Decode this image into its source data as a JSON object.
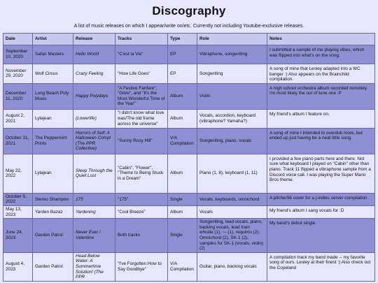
{
  "title": "Discography",
  "intro": "A list of music releases on which I appear/write on/etc. Currently not including Youtube-exclusive releases.",
  "headers": [
    "Date",
    "Artist",
    "Release",
    "Tracks",
    "Type",
    "Role",
    "Notes"
  ],
  "rows": [
    {
      "date": "September 10, 2020",
      "artist": "Safari Masters",
      "release": "Hello World",
      "tracks": "\"C'est la Vie\"",
      "type": "EP",
      "role": "Vibraphone, songwriting",
      "notes": "I submitted a sample of me playing vibes, which was flipped into what's on the song."
    },
    {
      "date": "November 29, 2020",
      "artist": "Wolf Circus",
      "release": "Crazy Feeling",
      "tracks": "\"How Life Goes\"",
      "type": "EP",
      "role": "Songwriting",
      "notes": "A song of mine that Lesley adapted into a WC banger :) Also appears on the Brainchild compilation."
    },
    {
      "date": "December 11, 2020",
      "artist": "Long Beach Poly Music",
      "release": "Happy Polydays",
      "tracks": "\"A Festive Fanfare\", \"Glow\", and \"It's the Most Wonderful Time of the Year\"",
      "type": "Album",
      "role": "Violin",
      "notes": "A high school orchestra album recorded remotely. I'm most likely the out of tune one :P"
    },
    {
      "date": "August 2, 2021",
      "artist": "Lylajean",
      "release": "(Lowerlife)",
      "tracks": "\"I didn't know what love was/The old frame across the universe\"",
      "type": "Album",
      "role": "Vocals, accordion, keyboard (vibraphone? Yamaha?)",
      "notes": "My friend's album I feature on."
    },
    {
      "date": "October 31, 2021",
      "artist": "The Peppermint Prints",
      "release": "Horrors of Self: A Halloween Compl (The PPR Collective)",
      "tracks": "\"Sunny Rosy Hill\"",
      "type": "V/A Compilation",
      "role": "Songwriting, piano, vocals",
      "notes": "A song of mine I intended to overdub more, but ended up just having be a neat little song."
    },
    {
      "date": "May 22, 2022",
      "artist": "Lylajean",
      "release": "Sleep Through the Quiet Lust",
      "tracks": "\"Cabin\", \"Flower\", \"Theme to Being Stuck in a Dream\"",
      "type": "Album",
      "role": "Piano (1, 8), keyboard (1, 11)",
      "notes": "I provided a few piano parts here and there. Not sure what keyboard I played on \"Cabin\" other than piano. Track 11 flipped a vibraphone sample from a Discord voice call. I was playing the Super Mario Bros theme."
    },
    {
      "date": "October 5, 2022",
      "artist": "Stereo Shampoo",
      "release": "175",
      "tracks": "\"175\"",
      "type": "Single",
      "role": "Vocals, keyboards, omnichord",
      "notes": "A pitcher56 cover for a j-indies server compilation"
    },
    {
      "date": "May 13, 2023",
      "artist": "Yarden Bazaz",
      "release": "Yardening",
      "tracks": "\"Cool Breeze\"",
      "type": "Album",
      "role": "Vocals",
      "notes": "My friend's album I sang vocals for :D"
    },
    {
      "date": "June 24, 2023",
      "artist": "Garden Patrol",
      "release": "Never Ever / Valentine",
      "tracks": "Both tracks",
      "type": "Single",
      "role": "Songwriting, lead vocals, piano, backing vocals, lead train whistle (1), ~- (1), requinto (2), Omnichord (2), SK-1 (2), samples for SK-1 (vocals, violin) (2)",
      "notes": "My band's debut single."
    },
    {
      "date": "August 4, 2023",
      "artist": "Garden Patrol",
      "release": "Head Below Water: A Summertime Solution! (The PPR",
      "tracks": "\"I've Forgotten How to Say Goodbye\"",
      "type": "V/A Compilation",
      "role": "Guitar, piano, backing vocals",
      "notes": "A compilation track my band made -- my favorite song of ours. Lesley at their finest :) Also check out the Copeland"
    }
  ]
}
